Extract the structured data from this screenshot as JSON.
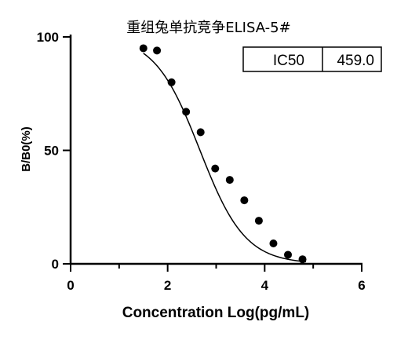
{
  "chart_data": {
    "type": "scatter",
    "title": "重组兔单抗竞争ELISA-5#",
    "xlabel": "Concentration Log(pg/mL)",
    "ylabel": "B/B0(%)",
    "xlim": [
      0,
      6
    ],
    "ylim": [
      0,
      100
    ],
    "x_ticks": [
      "0",
      "2",
      "4",
      "6"
    ],
    "y_ticks": [
      "0",
      "50",
      "100"
    ],
    "points": {
      "x": [
        1.5,
        1.78,
        2.08,
        2.38,
        2.68,
        2.98,
        3.28,
        3.58,
        3.88,
        4.18,
        4.48,
        4.78
      ],
      "y": [
        95,
        94,
        80,
        67,
        58,
        42,
        37,
        28,
        19,
        9,
        4,
        2
      ]
    },
    "fit_curve": {
      "type": "four-parameter logistic",
      "x_range": [
        1.5,
        4.85
      ]
    },
    "ic50_table": {
      "label": "IC50",
      "value": "459.0"
    },
    "grid": false
  }
}
